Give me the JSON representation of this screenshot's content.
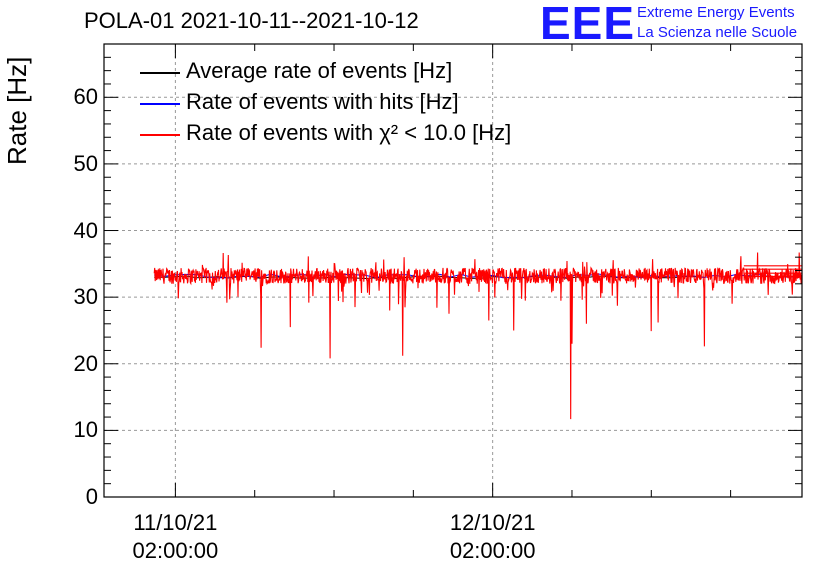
{
  "header": {
    "title": "POLA-01 2021-10-11--2021-10-12",
    "logo_text": "EEE",
    "logo_line1": "Extreme Energy Events",
    "logo_line2": "La Scienza nelle Scuole"
  },
  "colors": {
    "black_series": "#000000",
    "blue_series": "#0000ff",
    "red_series": "#ff0000",
    "logo": "#1a1aff"
  },
  "legend": [
    {
      "label": "Average rate of events [Hz]",
      "color": "#000000"
    },
    {
      "label": "Rate of events with hits [Hz]",
      "color": "#0000ff"
    },
    {
      "label": "Rate of events with χ² < 10.0 [Hz]",
      "color": "#ff0000"
    }
  ],
  "chart_data": {
    "type": "line",
    "title": "POLA-01 2021-10-11--2021-10-12",
    "xlabel": "",
    "ylabel": "Rate [Hz]",
    "ylim": [
      0,
      68
    ],
    "yticks": [
      "0",
      "10",
      "20",
      "30",
      "40",
      "50",
      "60"
    ],
    "xlim_hours": [
      -5.4,
      47.4
    ],
    "xticks": [
      {
        "hour": 0,
        "date": "11/10/21",
        "time": "02:00:00"
      },
      {
        "hour": 24,
        "date": "12/10/21",
        "time": "02:00:00"
      }
    ],
    "series": [
      {
        "name": "Average rate of events [Hz]",
        "color": "#000000",
        "baseline": 33.0
      },
      {
        "name": "Rate of events with hits [Hz]",
        "color": "#0000ff",
        "baseline": 33.2
      },
      {
        "name": "Rate of events with χ² < 10.0 [Hz]",
        "color": "#ff0000",
        "baseline": 33.2,
        "noise": 1.2,
        "x_range_hours": [
          -1.6,
          47.4
        ]
      }
    ],
    "dips": [
      {
        "hour": 6.5,
        "value": 22.4
      },
      {
        "hour": 8.7,
        "value": 25.5
      },
      {
        "hour": 11.7,
        "value": 20.8
      },
      {
        "hour": 17.2,
        "value": 21.2
      },
      {
        "hour": 16.2,
        "value": 28.0
      },
      {
        "hour": 30.0,
        "value": 23.0
      },
      {
        "hour": 29.9,
        "value": 11.7
      },
      {
        "hour": 25.6,
        "value": 25.0
      },
      {
        "hour": 23.7,
        "value": 26.5
      },
      {
        "hour": 36.0,
        "value": 24.9
      },
      {
        "hour": 40.0,
        "value": 22.6
      },
      {
        "hour": 31.1,
        "value": 26.0
      },
      {
        "hour": 20.7,
        "value": 27.5
      },
      {
        "hour": 13.6,
        "value": 28.5
      },
      {
        "hour": 36.5,
        "value": 26.2
      },
      {
        "hour": 42.1,
        "value": 29.0
      }
    ],
    "grid": true,
    "legend_position": "top-left"
  }
}
